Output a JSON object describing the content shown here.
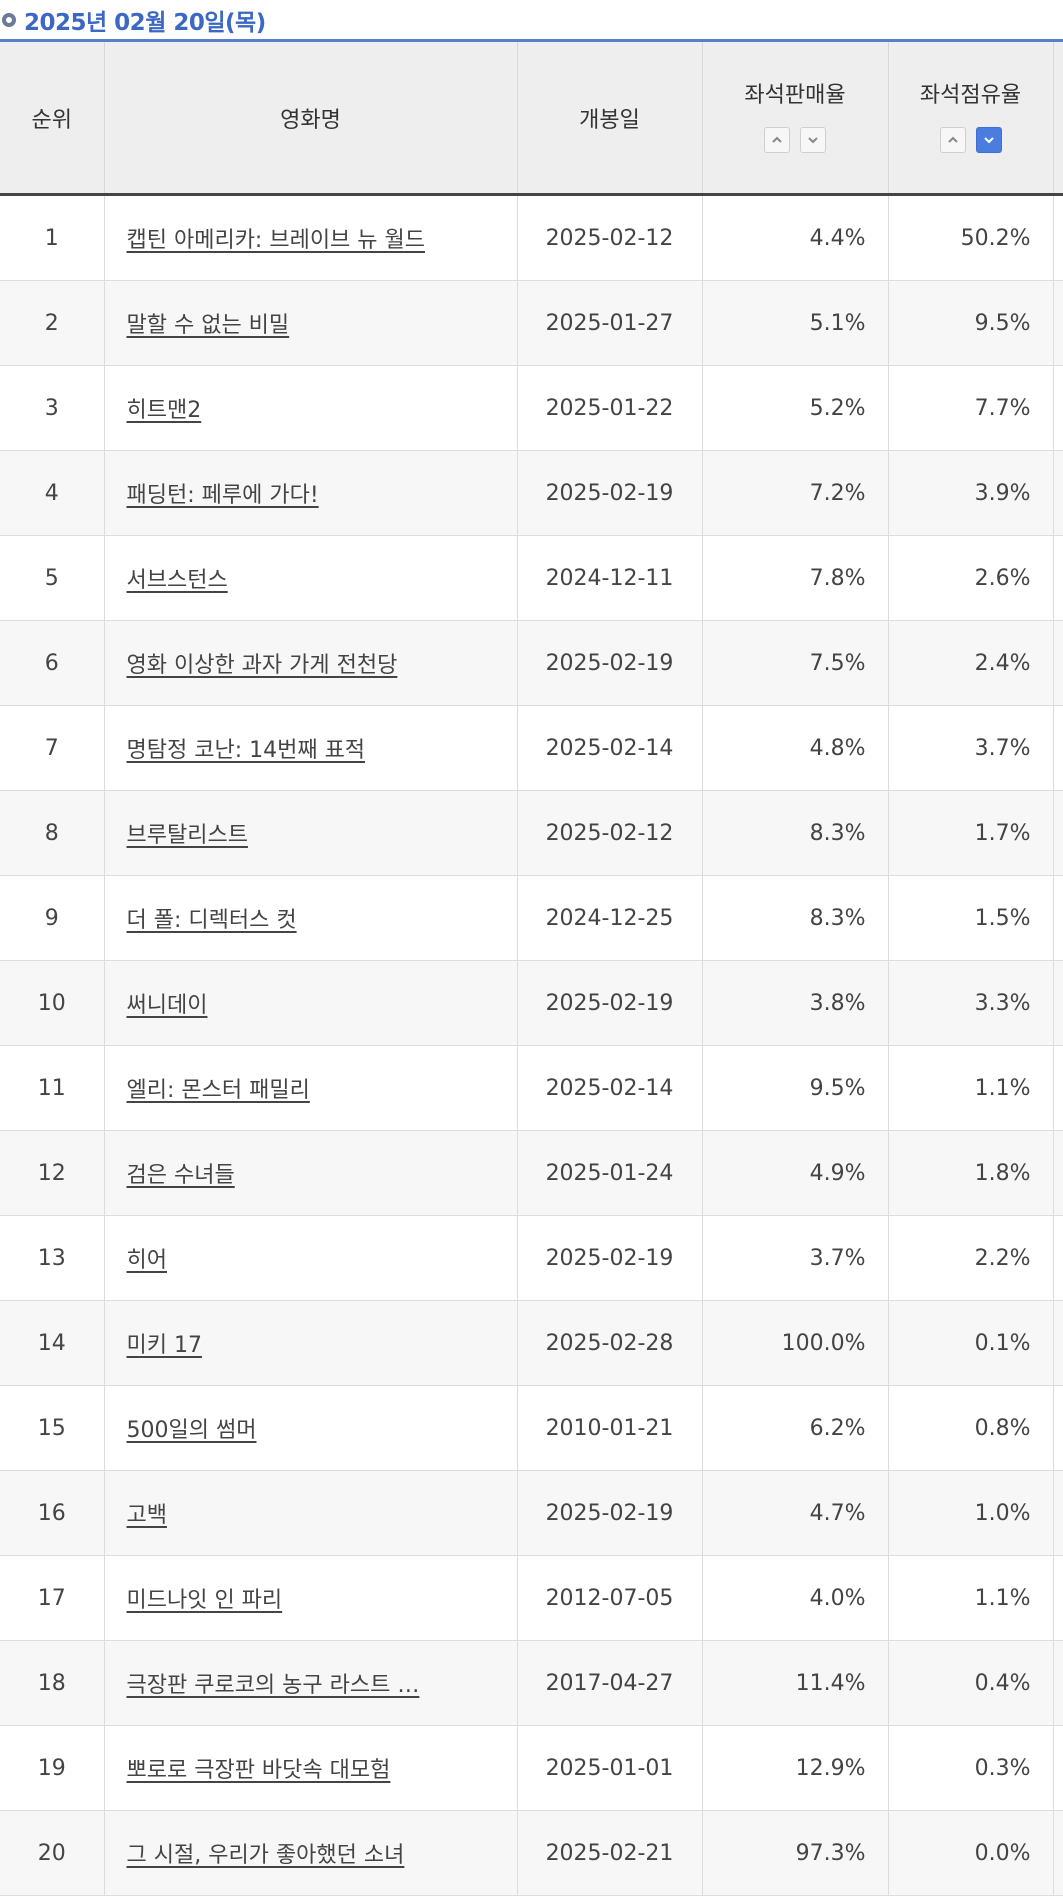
{
  "header": {
    "date_title": "2025년 02월 20일(목)"
  },
  "columns": {
    "rank": "순위",
    "title": "영화명",
    "open_date": "개봉일",
    "seat_sales_rate": "좌석판매율",
    "seat_share_rate": "좌석점유율"
  },
  "sort": {
    "active_column": "seat_share_rate",
    "active_direction": "descending"
  },
  "colors": {
    "accent": "#3d67c4",
    "header_line": "#5a7fc8",
    "sort_active": "#4a7de0"
  },
  "rows": [
    {
      "rank": "1",
      "title": "캡틴 아메리카: 브레이브 뉴 월드",
      "open_date": "2025-02-12",
      "sales": "4.4%",
      "share": "50.2%"
    },
    {
      "rank": "2",
      "title": "말할 수 없는 비밀",
      "open_date": "2025-01-27",
      "sales": "5.1%",
      "share": "9.5%"
    },
    {
      "rank": "3",
      "title": "히트맨2",
      "open_date": "2025-01-22",
      "sales": "5.2%",
      "share": "7.7%"
    },
    {
      "rank": "4",
      "title": "패딩턴: 페루에 가다!",
      "open_date": "2025-02-19",
      "sales": "7.2%",
      "share": "3.9%"
    },
    {
      "rank": "5",
      "title": "서브스턴스",
      "open_date": "2024-12-11",
      "sales": "7.8%",
      "share": "2.6%"
    },
    {
      "rank": "6",
      "title": "영화 이상한 과자 가게 전천당",
      "open_date": "2025-02-19",
      "sales": "7.5%",
      "share": "2.4%"
    },
    {
      "rank": "7",
      "title": "명탐정 코난: 14번째 표적",
      "open_date": "2025-02-14",
      "sales": "4.8%",
      "share": "3.7%"
    },
    {
      "rank": "8",
      "title": "브루탈리스트",
      "open_date": "2025-02-12",
      "sales": "8.3%",
      "share": "1.7%"
    },
    {
      "rank": "9",
      "title": "더 폴: 디렉터스 컷",
      "open_date": "2024-12-25",
      "sales": "8.3%",
      "share": "1.5%"
    },
    {
      "rank": "10",
      "title": "써니데이",
      "open_date": "2025-02-19",
      "sales": "3.8%",
      "share": "3.3%"
    },
    {
      "rank": "11",
      "title": "엘리: 몬스터 패밀리",
      "open_date": "2025-02-14",
      "sales": "9.5%",
      "share": "1.1%"
    },
    {
      "rank": "12",
      "title": "검은 수녀들",
      "open_date": "2025-01-24",
      "sales": "4.9%",
      "share": "1.8%"
    },
    {
      "rank": "13",
      "title": "히어",
      "open_date": "2025-02-19",
      "sales": "3.7%",
      "share": "2.2%"
    },
    {
      "rank": "14",
      "title": "미키 17",
      "open_date": "2025-02-28",
      "sales": "100.0%",
      "share": "0.1%"
    },
    {
      "rank": "15",
      "title": "500일의 썸머",
      "open_date": "2010-01-21",
      "sales": "6.2%",
      "share": "0.8%"
    },
    {
      "rank": "16",
      "title": "고백",
      "open_date": "2025-02-19",
      "sales": "4.7%",
      "share": "1.0%"
    },
    {
      "rank": "17",
      "title": "미드나잇 인 파리",
      "open_date": "2012-07-05",
      "sales": "4.0%",
      "share": "1.1%"
    },
    {
      "rank": "18",
      "title": "극장판 쿠로코의 농구 라스트 …",
      "open_date": "2017-04-27",
      "sales": "11.4%",
      "share": "0.4%"
    },
    {
      "rank": "19",
      "title": "뽀로로 극장판 바닷속 대모험",
      "open_date": "2025-01-01",
      "sales": "12.9%",
      "share": "0.3%"
    },
    {
      "rank": "20",
      "title": "그 시절, 우리가 좋아했던 소녀",
      "open_date": "2025-02-21",
      "sales": "97.3%",
      "share": "0.0%"
    }
  ]
}
